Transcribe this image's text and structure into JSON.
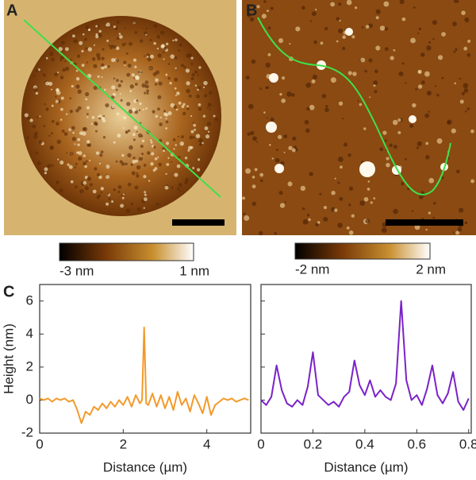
{
  "panels": {
    "a": "A",
    "b": "B",
    "c": "C"
  },
  "colorbars": [
    {
      "min_label": "-3 nm",
      "max_label": "1 nm"
    },
    {
      "min_label": "-2 nm",
      "max_label": "2 nm"
    }
  ],
  "chart_data": [
    {
      "type": "line",
      "xlabel": "Distance (µm)",
      "ylabel": "Height (nm)",
      "xlim": [
        0,
        5.05
      ],
      "xticks": [
        0,
        2,
        4
      ],
      "ylim": [
        -2,
        7
      ],
      "yticks": [
        -2,
        0,
        2,
        4,
        6
      ],
      "series": [
        {
          "color": "#f39a2b",
          "x": [
            0,
            0.1,
            0.2,
            0.3,
            0.4,
            0.5,
            0.6,
            0.7,
            0.8,
            0.9,
            1.0,
            1.1,
            1.2,
            1.3,
            1.4,
            1.5,
            1.6,
            1.7,
            1.8,
            1.9,
            2.0,
            2.1,
            2.2,
            2.3,
            2.4,
            2.45,
            2.5,
            2.55,
            2.6,
            2.7,
            2.8,
            2.9,
            3.0,
            3.1,
            3.2,
            3.3,
            3.4,
            3.5,
            3.6,
            3.7,
            3.8,
            3.9,
            4.0,
            4.1,
            4.2,
            4.3,
            4.4,
            4.5,
            4.6,
            4.7,
            4.8,
            4.9,
            5.0
          ],
          "values": [
            0.1,
            0.0,
            0.1,
            -0.1,
            0.1,
            0.0,
            0.1,
            -0.1,
            0.0,
            -0.6,
            -1.4,
            -0.7,
            -0.9,
            -0.4,
            -0.6,
            -0.2,
            -0.5,
            -0.1,
            -0.4,
            0.0,
            -0.3,
            0.2,
            -0.4,
            0.3,
            -0.2,
            0.0,
            4.4,
            -0.2,
            -0.3,
            0.4,
            -0.4,
            0.3,
            -0.5,
            0.2,
            -0.6,
            0.5,
            -0.3,
            0.1,
            -0.7,
            0.3,
            -0.2,
            -0.8,
            0.2,
            -0.9,
            -0.3,
            -0.1,
            0.1,
            0.0,
            0.1,
            -0.1,
            0.0,
            0.1,
            0.0
          ]
        }
      ]
    },
    {
      "type": "line",
      "xlabel": "Distance (µm)",
      "xlim": [
        0,
        0.81
      ],
      "xticks": [
        0,
        0.2,
        0.4,
        0.6,
        0.8
      ],
      "ylim": [
        -2,
        7
      ],
      "yticks": [
        -2,
        0,
        2,
        4,
        6
      ],
      "series": [
        {
          "color": "#7a22c8",
          "x": [
            0,
            0.02,
            0.04,
            0.06,
            0.08,
            0.1,
            0.12,
            0.14,
            0.16,
            0.18,
            0.2,
            0.22,
            0.24,
            0.26,
            0.28,
            0.3,
            0.32,
            0.34,
            0.36,
            0.38,
            0.4,
            0.42,
            0.44,
            0.46,
            0.48,
            0.5,
            0.52,
            0.54,
            0.56,
            0.58,
            0.6,
            0.62,
            0.64,
            0.66,
            0.68,
            0.7,
            0.72,
            0.74,
            0.76,
            0.78,
            0.8
          ],
          "values": [
            0.0,
            -0.3,
            0.2,
            2.1,
            0.6,
            -0.2,
            -0.4,
            0.0,
            -0.3,
            0.8,
            2.9,
            0.3,
            0.0,
            -0.3,
            -0.1,
            -0.4,
            0.2,
            0.5,
            2.4,
            0.9,
            0.3,
            1.2,
            0.2,
            0.6,
            0.2,
            0.0,
            1.0,
            6.0,
            1.2,
            0.0,
            0.3,
            -0.3,
            0.7,
            2.1,
            0.3,
            -0.2,
            0.4,
            1.7,
            -0.1,
            -0.6,
            0.1
          ]
        }
      ]
    }
  ]
}
